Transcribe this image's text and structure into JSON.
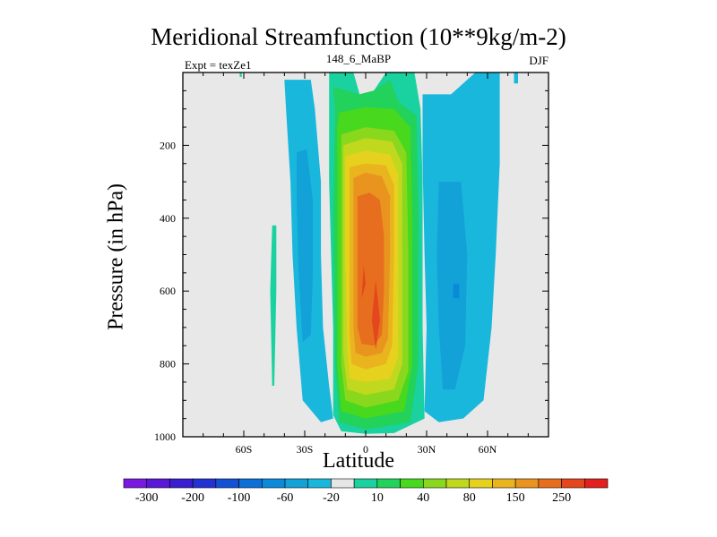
{
  "colors": {
    "background": "#ffffff",
    "plot_background": "#e8e8e8",
    "axis": "#000000"
  },
  "chart_data": {
    "type": "heatmap",
    "title": "Meridional Streamfunction (10**9kg/m-2)",
    "subtitle_left": "Expt = texZe1",
    "subtitle_center": "148_6_MaBP",
    "subtitle_right": "DJF",
    "xlabel": "Latitude",
    "ylabel": "Pressure (in hPa)",
    "xlim": [
      -90,
      90
    ],
    "ylim": [
      1000,
      0
    ],
    "x_ticks": [
      {
        "value": -60,
        "label": "60S"
      },
      {
        "value": -30,
        "label": "30S"
      },
      {
        "value": 0,
        "label": "0"
      },
      {
        "value": 30,
        "label": "30N"
      },
      {
        "value": 60,
        "label": "60N"
      }
    ],
    "y_ticks": [
      {
        "value": 200,
        "label": "200"
      },
      {
        "value": 400,
        "label": "400"
      },
      {
        "value": 600,
        "label": "600"
      },
      {
        "value": 800,
        "label": "800"
      },
      {
        "value": 1000,
        "label": "1000"
      }
    ],
    "colorbar": {
      "colors": [
        "#7a19e0",
        "#5a18d6",
        "#3a1ed0",
        "#2233d2",
        "#1452d4",
        "#0e6fd8",
        "#0a8ad8",
        "#12a2d8",
        "#1ab7dc",
        "#e6e6e6",
        "#1ad1a0",
        "#22d25a",
        "#48d81e",
        "#8ad81e",
        "#c0d81e",
        "#e6d21e",
        "#eab41e",
        "#e8941e",
        "#e66e1e",
        "#e4461e",
        "#e2201e"
      ],
      "labels": [
        {
          "after_index": 0,
          "text": "-300"
        },
        {
          "after_index": 2,
          "text": "-200"
        },
        {
          "after_index": 4,
          "text": "-100"
        },
        {
          "after_index": 6,
          "text": "-60"
        },
        {
          "after_index": 8,
          "text": "-20"
        },
        {
          "after_index": 10,
          "text": "10"
        },
        {
          "after_index": 12,
          "text": "40"
        },
        {
          "after_index": 14,
          "text": "80"
        },
        {
          "after_index": 16,
          "text": "150"
        },
        {
          "after_index": 18,
          "text": "250"
        }
      ]
    },
    "field": {
      "description": "two-lobed streamfunction field (shading levels)",
      "regions": [
        {
          "name": "sh-outer-cell-light",
          "level_index": 8,
          "points": [
            [
              -40,
              20
            ],
            [
              -27,
              20
            ],
            [
              -25,
              100
            ],
            [
              -22,
              300
            ],
            [
              -22,
              500
            ],
            [
              -21,
              700
            ],
            [
              -18,
              860
            ],
            [
              -16,
              950
            ],
            [
              -22,
              960
            ],
            [
              -31,
              900
            ],
            [
              -34,
              700
            ],
            [
              -36,
              500
            ],
            [
              -37,
              300
            ],
            [
              -39,
              120
            ]
          ]
        },
        {
          "name": "sh-outer-cell-medium",
          "level_index": 7,
          "points": [
            [
              -34,
              220
            ],
            [
              -29,
              210
            ],
            [
              -26,
              350
            ],
            [
              -26,
              550
            ],
            [
              -27,
              720
            ],
            [
              -31,
              740
            ],
            [
              -33,
              550
            ],
            [
              -34,
              350
            ]
          ]
        },
        {
          "name": "sh-polar-thin-strip",
          "level_index": 10,
          "points": [
            [
              -46,
              420
            ],
            [
              -44,
              420
            ],
            [
              -44,
              600
            ],
            [
              -45,
              860
            ],
            [
              -46,
              860
            ],
            [
              -47,
              600
            ]
          ]
        },
        {
          "name": "sh-top-edge-patch",
          "level_index": 10,
          "points": [
            [
              -62,
              0
            ],
            [
              -61,
              0
            ],
            [
              -61,
              12
            ],
            [
              -62,
              12
            ]
          ]
        },
        {
          "name": "nh-outer-cell-light",
          "level_index": 8,
          "points": [
            [
              28,
              60
            ],
            [
              42,
              60
            ],
            [
              54,
              0
            ],
            [
              66,
              0
            ],
            [
              66,
              250
            ],
            [
              64,
              500
            ],
            [
              62,
              700
            ],
            [
              58,
              900
            ],
            [
              48,
              950
            ],
            [
              36,
              960
            ],
            [
              29,
              930
            ],
            [
              30,
              700
            ],
            [
              29,
              500
            ],
            [
              28,
              250
            ]
          ]
        },
        {
          "name": "nh-outer-cell-medium",
          "level_index": 7,
          "points": [
            [
              36,
              300
            ],
            [
              47,
              300
            ],
            [
              50,
              500
            ],
            [
              49,
              750
            ],
            [
              44,
              870
            ],
            [
              38,
              870
            ],
            [
              36,
              700
            ],
            [
              35,
              500
            ]
          ]
        },
        {
          "name": "nh-outer-cell-dark",
          "level_index": 6,
          "points": [
            [
              43,
              580
            ],
            [
              46,
              580
            ],
            [
              46,
              620
            ],
            [
              43,
              620
            ]
          ]
        },
        {
          "name": "nh-top-edge-patch",
          "level_index": 8,
          "points": [
            [
              73,
              0
            ],
            [
              75,
              0
            ],
            [
              75,
              30
            ],
            [
              73,
              30
            ]
          ]
        },
        {
          "name": "hadley-10",
          "level_index": 10,
          "points": [
            [
              -18,
              0
            ],
            [
              -6,
              0
            ],
            [
              -3,
              60
            ],
            [
              4,
              50
            ],
            [
              10,
              0
            ],
            [
              24,
              0
            ],
            [
              27,
              100
            ],
            [
              28,
              300
            ],
            [
              28,
              700
            ],
            [
              29,
              950
            ],
            [
              14,
              990
            ],
            [
              0,
              992
            ],
            [
              -12,
              985
            ],
            [
              -16,
              940
            ],
            [
              -16,
              700
            ],
            [
              -18,
              300
            ],
            [
              -18,
              100
            ]
          ]
        },
        {
          "name": "hadley-20",
          "level_index": 11,
          "points": [
            [
              -16,
              40
            ],
            [
              -3,
              60
            ],
            [
              4,
              50
            ],
            [
              12,
              20
            ],
            [
              16,
              80
            ],
            [
              25,
              120
            ],
            [
              26,
              400
            ],
            [
              26,
              800
            ],
            [
              22,
              960
            ],
            [
              0,
              980
            ],
            [
              -13,
              960
            ],
            [
              -15,
              800
            ],
            [
              -16,
              400
            ],
            [
              -15,
              100
            ]
          ]
        },
        {
          "name": "hadley-40",
          "level_index": 12,
          "points": [
            [
              -13,
              110
            ],
            [
              0,
              95
            ],
            [
              14,
              100
            ],
            [
              22,
              150
            ],
            [
              23,
              400
            ],
            [
              23,
              800
            ],
            [
              19,
              930
            ],
            [
              0,
              950
            ],
            [
              -12,
              930
            ],
            [
              -14,
              800
            ],
            [
              -14,
              400
            ],
            [
              -14,
              150
            ]
          ]
        },
        {
          "name": "hadley-60",
          "level_index": 13,
          "points": [
            [
              -12,
              170
            ],
            [
              0,
              150
            ],
            [
              14,
              160
            ],
            [
              20,
              220
            ],
            [
              21,
              500
            ],
            [
              21,
              820
            ],
            [
              16,
              900
            ],
            [
              0,
              920
            ],
            [
              -10,
              900
            ],
            [
              -12,
              800
            ],
            [
              -12,
              500
            ],
            [
              -12,
              220
            ]
          ]
        },
        {
          "name": "hadley-80",
          "level_index": 14,
          "points": [
            [
              -11,
              200
            ],
            [
              0,
              180
            ],
            [
              13,
              190
            ],
            [
              18,
              250
            ],
            [
              18,
              500
            ],
            [
              18,
              800
            ],
            [
              14,
              870
            ],
            [
              0,
              885
            ],
            [
              -9,
              870
            ],
            [
              -11,
              770
            ],
            [
              -11,
              500
            ],
            [
              -11,
              250
            ]
          ]
        },
        {
          "name": "hadley-100",
          "level_index": 15,
          "points": [
            [
              -10,
              230
            ],
            [
              0,
              215
            ],
            [
              12,
              225
            ],
            [
              16,
              280
            ],
            [
              16,
              500
            ],
            [
              16,
              780
            ],
            [
              12,
              840
            ],
            [
              0,
              850
            ],
            [
              -8,
              840
            ],
            [
              -9,
              750
            ],
            [
              -10,
              500
            ],
            [
              -10,
              280
            ]
          ]
        },
        {
          "name": "hadley-150",
          "level_index": 16,
          "points": [
            [
              -8,
              260
            ],
            [
              0,
              250
            ],
            [
              10,
              255
            ],
            [
              14,
              310
            ],
            [
              14,
              500
            ],
            [
              13,
              750
            ],
            [
              10,
              800
            ],
            [
              0,
              815
            ],
            [
              -7,
              800
            ],
            [
              -8,
              720
            ],
            [
              -8,
              500
            ],
            [
              -8,
              310
            ]
          ]
        },
        {
          "name": "hadley-200",
          "level_index": 17,
          "points": [
            [
              -6,
              290
            ],
            [
              0,
              275
            ],
            [
              8,
              285
            ],
            [
              12,
              340
            ],
            [
              12,
              500
            ],
            [
              11,
              730
            ],
            [
              8,
              770
            ],
            [
              0,
              780
            ],
            [
              -5,
              770
            ],
            [
              -6,
              700
            ],
            [
              -6,
              500
            ],
            [
              -6,
              340
            ]
          ]
        },
        {
          "name": "hadley-250",
          "level_index": 18,
          "points": [
            [
              -4,
              340
            ],
            [
              2,
              330
            ],
            [
              7,
              350
            ],
            [
              9,
              450
            ],
            [
              9,
              600
            ],
            [
              8,
              720
            ],
            [
              4,
              750
            ],
            [
              -2,
              745
            ],
            [
              -4,
              700
            ],
            [
              -4,
              500
            ]
          ]
        },
        {
          "name": "hadley-core-a",
          "level_index": 19,
          "points": [
            [
              -1,
              530
            ],
            [
              0,
              580
            ],
            [
              -2,
              620
            ]
          ]
        },
        {
          "name": "hadley-core-b",
          "level_index": 19,
          "points": [
            [
              5,
              570
            ],
            [
              7,
              680
            ],
            [
              5,
              760
            ],
            [
              3,
              680
            ]
          ]
        }
      ]
    }
  }
}
